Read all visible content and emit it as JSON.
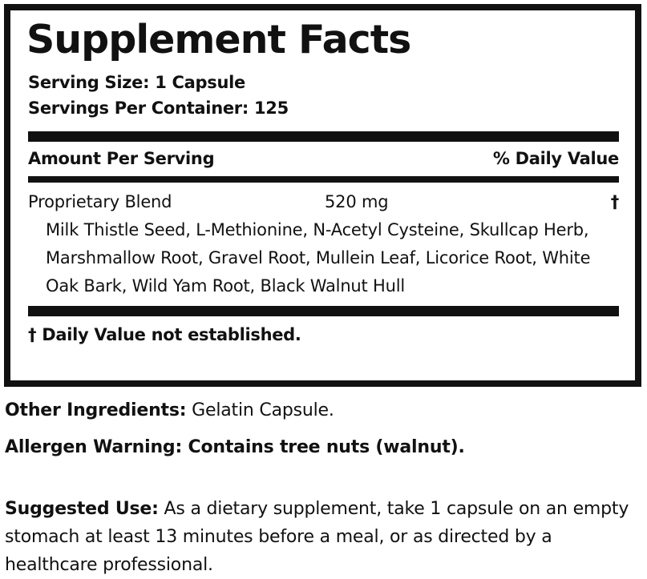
{
  "colors": {
    "ink": "#111111",
    "background": "#ffffff"
  },
  "panel": {
    "title": "Supplement Facts",
    "serving_size": "Serving Size: 1 Capsule",
    "servings_per_container": "Servings Per Container: 125",
    "amount_per_serving_header": "Amount Per Serving",
    "daily_value_header": "% Daily Value",
    "blend": {
      "name": "Proprietary Blend",
      "amount": "520 mg",
      "daily_value_symbol": "†",
      "components": "Milk Thistle Seed, L-Methionine, N-Acetyl Cysteine, Skullcap Herb, Marshmallow Root, Gravel Root, Mullein Leaf, Licorice Root, White Oak Bark, Wild Yam Root, Black Walnut Hull"
    },
    "footnote": "† Daily Value not established."
  },
  "other_ingredients": {
    "label": "Other Ingredients:",
    "value": "Gelatin Capsule."
  },
  "allergen_warning": {
    "label": "Allergen Warning:",
    "value": "Contains tree nuts (walnut)."
  },
  "suggested_use": {
    "label": "Suggested Use:",
    "value": "As a dietary supplement, take 1 capsule on an empty stomach at least 13 minutes before a meal, or as directed by a healthcare professional."
  }
}
